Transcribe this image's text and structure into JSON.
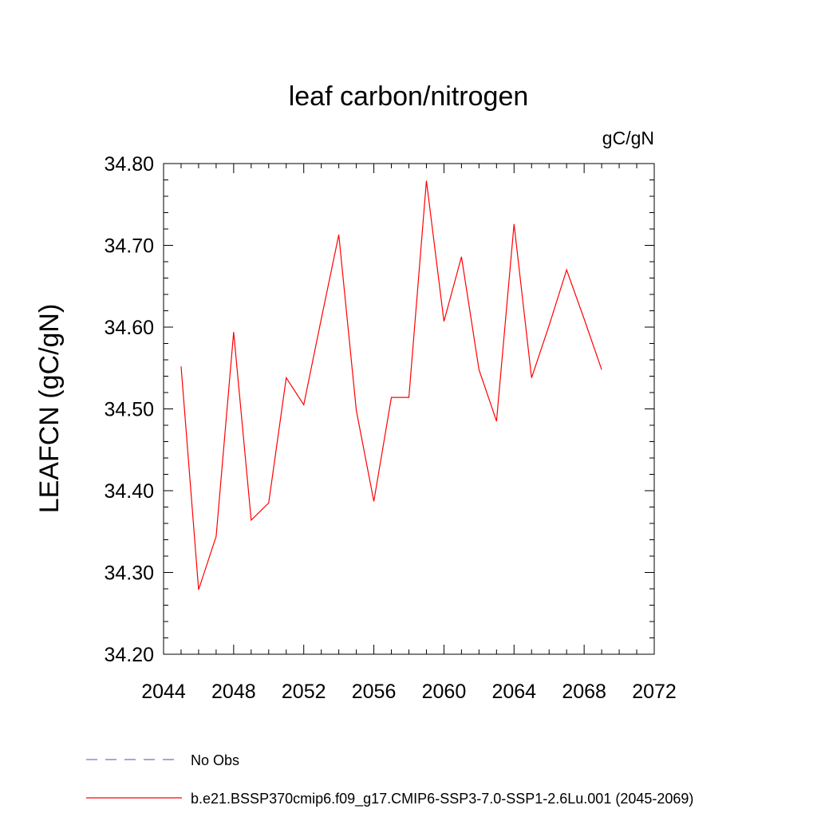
{
  "chart_data": {
    "type": "line",
    "title": "leaf carbon/nitrogen",
    "units_label": "gC/gN",
    "ylabel": "LEAFCN  (gC/gN)",
    "xlabel": "",
    "xlim": [
      2044,
      2072
    ],
    "ylim": [
      34.2,
      34.8
    ],
    "x_ticks": [
      "2044",
      "2048",
      "2052",
      "2056",
      "2060",
      "2064",
      "2068",
      "2072"
    ],
    "y_ticks": [
      "34.20",
      "34.30",
      "34.40",
      "34.50",
      "34.60",
      "34.70",
      "34.80"
    ],
    "legend_position": "bottom",
    "series": [
      {
        "name": "No Obs",
        "color": "#7b6fb0",
        "dash": "dashed",
        "x": [],
        "values": []
      },
      {
        "name": "b.e21.BSSP370cmip6.f09_g17.CMIP6-SSP3-7.0-SSP1-2.6Lu.001 (2045-2069)",
        "color": "#ff0000",
        "dash": "solid",
        "x": [
          2045,
          2046,
          2047,
          2048,
          2049,
          2050,
          2051,
          2052,
          2053,
          2054,
          2055,
          2056,
          2057,
          2058,
          2059,
          2060,
          2061,
          2062,
          2063,
          2064,
          2065,
          2066,
          2067,
          2068,
          2069
        ],
        "values": [
          34.552,
          34.279,
          34.344,
          34.594,
          34.364,
          34.385,
          34.538,
          34.505,
          34.61,
          34.713,
          34.498,
          34.387,
          34.514,
          34.514,
          34.779,
          34.607,
          34.686,
          34.548,
          34.485,
          34.726,
          34.538,
          34.602,
          34.67,
          34.61,
          34.548
        ]
      }
    ]
  }
}
